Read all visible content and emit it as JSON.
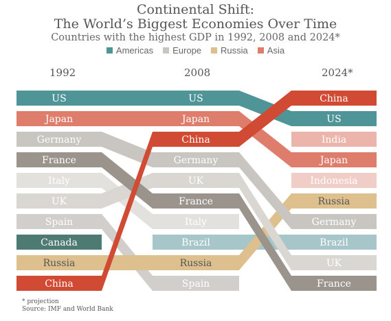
{
  "title_line1": "Continental Shift:",
  "title_line2": "The World’s Biggest Economies Over Time",
  "subtitle": "Countries with the highest GDP in 1992, 2008 and 2024*",
  "legend": [
    {
      "name": "Americas",
      "color": "#4f9497"
    },
    {
      "name": "Europe",
      "color": "#c9c6c2"
    },
    {
      "name": "Russia",
      "color": "#ddc08e"
    },
    {
      "name": "Asia",
      "color": "#de7d6c"
    }
  ],
  "footnote": "* projection",
  "source": "Source: IMF and World Bank",
  "chart_data": {
    "type": "bump",
    "columns": [
      "1992",
      "2008",
      "2024*"
    ],
    "rankings": {
      "1992": [
        "US",
        "Japan",
        "Germany",
        "France",
        "Italy",
        "UK",
        "Spain",
        "Canada",
        "Russia",
        "China"
      ],
      "2008": [
        "US",
        "Japan",
        "China",
        "Germany",
        "UK",
        "France",
        "Italy",
        "Brazil",
        "Russia",
        "Spain"
      ],
      "2024*": [
        "China",
        "US",
        "India",
        "Japan",
        "Indonesia",
        "Russia",
        "Germany",
        "Brazil",
        "UK",
        "France"
      ]
    },
    "countries": [
      {
        "name": "US",
        "ranks": [
          1,
          1,
          2
        ],
        "color": "#4f9497",
        "text": "#ffffff"
      },
      {
        "name": "Japan",
        "ranks": [
          2,
          2,
          4
        ],
        "color": "#de7d6c",
        "text": "#ffffff"
      },
      {
        "name": "Germany",
        "ranks": [
          3,
          4,
          7
        ],
        "color": "#c9c6c2",
        "text": "#ffffff"
      },
      {
        "name": "France",
        "ranks": [
          4,
          6,
          10
        ],
        "color": "#9a948d",
        "text": "#ffffff"
      },
      {
        "name": "Italy",
        "ranks": [
          5,
          7,
          null
        ],
        "color": "#e3e1de",
        "text": "#ffffff"
      },
      {
        "name": "UK",
        "ranks": [
          6,
          5,
          9
        ],
        "color": "#dad7d3",
        "text": "#ffffff"
      },
      {
        "name": "Spain",
        "ranks": [
          7,
          10,
          null
        ],
        "color": "#d1cecb",
        "text": "#ffffff"
      },
      {
        "name": "Canada",
        "ranks": [
          8,
          null,
          null
        ],
        "color": "#4d7a72",
        "text": "#ffffff"
      },
      {
        "name": "Russia",
        "ranks": [
          9,
          9,
          6
        ],
        "color": "#ddc08e",
        "text": "#555555"
      },
      {
        "name": "China",
        "ranks": [
          10,
          3,
          1
        ],
        "color": "#d14a34",
        "text": "#ffffff"
      },
      {
        "name": "Brazil",
        "ranks": [
          null,
          8,
          8
        ],
        "color": "#a7c6c9",
        "text": "#ffffff"
      },
      {
        "name": "India",
        "ranks": [
          null,
          null,
          3
        ],
        "color": "#ebb5ab",
        "text": "#ffffff"
      },
      {
        "name": "Indonesia",
        "ranks": [
          null,
          null,
          5
        ],
        "color": "#f0cdc6",
        "text": "#ffffff"
      }
    ]
  }
}
